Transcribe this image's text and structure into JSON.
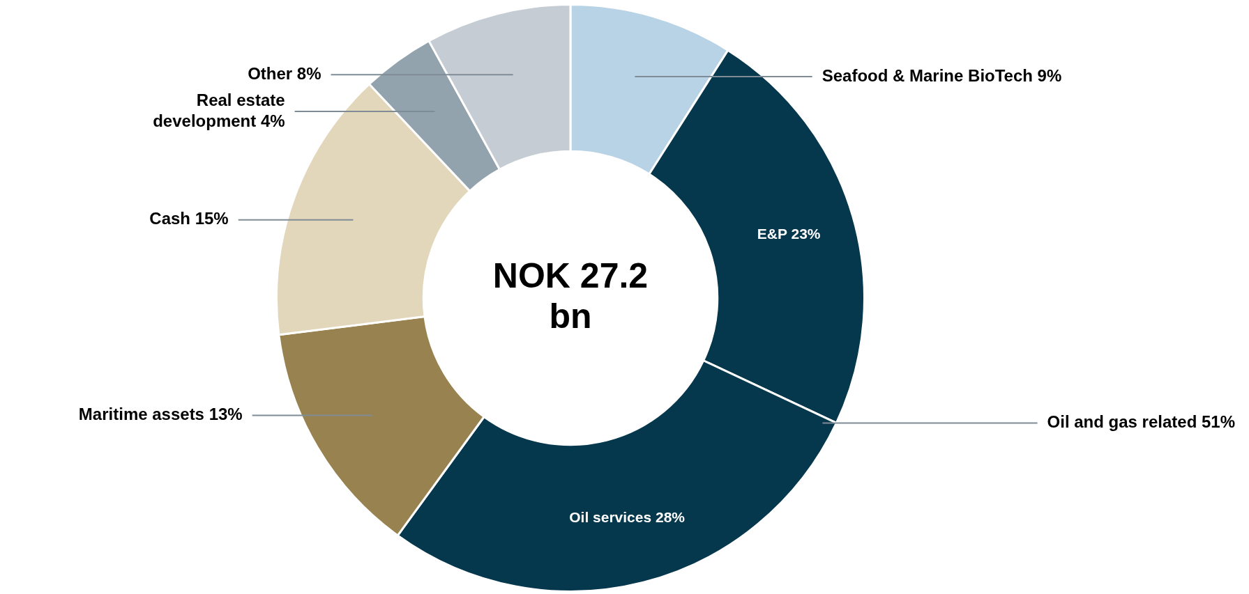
{
  "chart_data": {
    "type": "donut",
    "title": "NOK 27.2 bn",
    "categories": [
      "Seafood & Marine BioTech",
      "E&P",
      "Oil services",
      "Maritime assets",
      "Cash",
      "Real estate development",
      "Other"
    ],
    "values": [
      9,
      23,
      28,
      13,
      15,
      4,
      8
    ],
    "value_labels": [
      "9%",
      "23%",
      "28%",
      "13%",
      "15%",
      "4%",
      "8%"
    ],
    "colors": [
      "#b8d3e6",
      "#05374d",
      "#05374d",
      "#98824f",
      "#e2d6bb",
      "#93a3ad",
      "#c5ccd3"
    ],
    "annotations": [
      "Oil and gas related 51%"
    ],
    "legend": false
  }
}
